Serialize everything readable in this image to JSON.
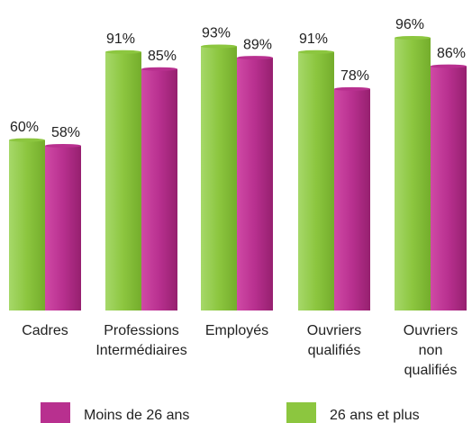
{
  "chart_data": {
    "type": "bar",
    "categories": [
      "Cadres",
      "Professions Intermédiaires",
      "Employés",
      "Ouvriers qualifiés",
      "Ouvriers non qualifiés"
    ],
    "series": [
      {
        "name": "26 ans et plus",
        "color": "#8cc63f",
        "values": [
          60,
          91,
          93,
          91,
          96
        ],
        "value_labels": [
          "60%",
          "91%",
          "93%",
          "91%",
          "96%"
        ]
      },
      {
        "name": "Moins de 26 ans",
        "color": "#b8308f",
        "values": [
          58,
          85,
          89,
          78,
          86
        ],
        "value_labels": [
          "58%",
          "85%",
          "89%",
          "78%",
          "86%"
        ]
      }
    ]
  }
}
